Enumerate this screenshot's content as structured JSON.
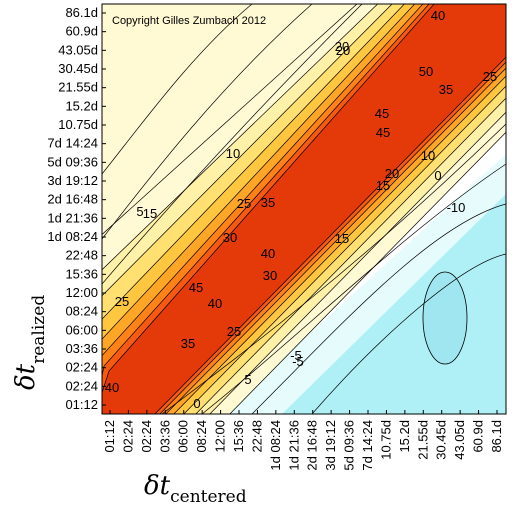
{
  "chart_data": {
    "type": "heatmap",
    "title": "",
    "copyright": "Copyright Gilles Zumbach 2012",
    "xlabel": {
      "main": "δt",
      "sub": "centered"
    },
    "ylabel": {
      "main": "δt",
      "sub": "realized"
    },
    "x_ticks": [
      "01:12",
      "02:24",
      "02:24",
      "03:36",
      "06:00",
      "08:24",
      "12:00",
      "15:36",
      "22:48",
      "1d 08:24",
      "1d 21:36",
      "2d 16:48",
      "3d 19:12",
      "5d 09:36",
      "7d 14:24",
      "10.75d",
      "15.2d",
      "21.55d",
      "30.45d",
      "43.05d",
      "60.9d",
      "86.1d"
    ],
    "y_ticks": [
      "01:12",
      "02:24",
      "02:24",
      "03:36",
      "06:00",
      "08:24",
      "12:00",
      "15:36",
      "22:48",
      "1d 08:24",
      "1d 21:36",
      "2d 16:48",
      "3d 19:12",
      "5d 09:36",
      "7d 14:24",
      "10.75d",
      "15.2d",
      "21.55d",
      "30.45d",
      "43.05d",
      "60.9d",
      "86.1d"
    ],
    "contour_levels": [
      -10,
      -5,
      0,
      5,
      10,
      15,
      20,
      25,
      30,
      35,
      40,
      45,
      50
    ],
    "contour_labels": [
      "40",
      "35",
      "25",
      "5",
      "0",
      "-5",
      "25",
      "30",
      "40",
      "45",
      "40",
      "15",
      "10",
      "5",
      "15",
      "30",
      "25",
      "35",
      "15",
      "20",
      "45",
      "45",
      "50",
      "40",
      "20",
      "35",
      "25",
      "-5",
      "10",
      "0",
      "-10",
      "20"
    ],
    "colorscale": [
      "#aef0f6",
      "#e6fbfb",
      "#ffffff",
      "#fff9d4",
      "#fff2a8",
      "#ffe070",
      "#ffc640",
      "#ffa626",
      "#ff8216",
      "#f55a10",
      "#e43a0a"
    ]
  }
}
